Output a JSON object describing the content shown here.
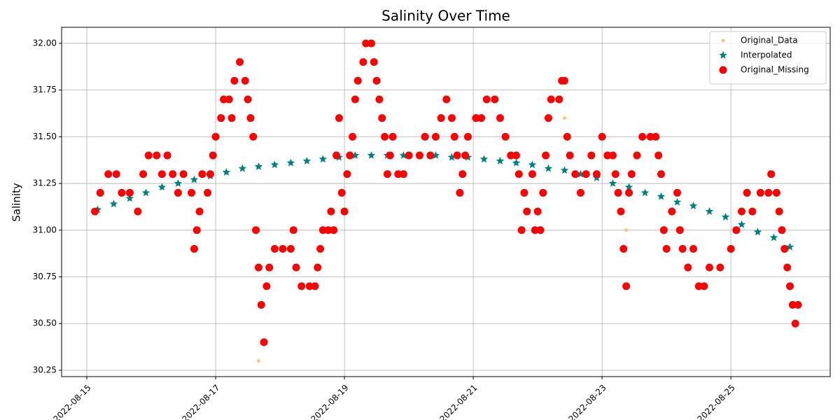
{
  "chart_data": {
    "type": "scatter",
    "title": "Salinity Over Time",
    "y_label": "Salinity",
    "xlim": [
      "2022-08-14T14:36",
      "2022-08-26T13:00"
    ],
    "xticks": [
      "2022-08-15",
      "2022-08-17",
      "2022-08-19",
      "2022-08-21",
      "2022-08-23",
      "2022-08-25"
    ],
    "ylim": [
      30.216,
      32.086
    ],
    "yticks": [
      30.25,
      {
        "value": 30.5,
        "label": "30.50"
      },
      30.75,
      {
        "value": 31,
        "label": "31.00"
      },
      31.25,
      {
        "value": 31.5,
        "label": "31.50"
      },
      31.75,
      {
        "value": 32,
        "label": "32.00"
      }
    ],
    "grid": true,
    "legend": "upper right",
    "series": [
      {
        "name": "Original_Data",
        "color": "#f8c77b",
        "marker": "o",
        "marker_size": 2.5,
        "x": [
          "2022-08-17T16:00",
          "2022-08-21T00:00",
          "2022-08-22T10:00",
          "2022-08-23T09:00"
        ],
        "values": [
          30.3,
          31.6,
          31.6,
          31.0
        ]
      },
      {
        "name": "Interpolated",
        "color": "#008080",
        "marker": "*",
        "marker_size": 6,
        "x": [
          "2022-08-15T04:00",
          "2022-08-15T10:00",
          "2022-08-15T16:00",
          "2022-08-15T22:00",
          "2022-08-16T04:00",
          "2022-08-16T10:00",
          "2022-08-16T16:00",
          "2022-08-16T22:00",
          "2022-08-17T04:00",
          "2022-08-17T10:00",
          "2022-08-17T16:00",
          "2022-08-17T22:00",
          "2022-08-18T04:00",
          "2022-08-18T10:00",
          "2022-08-18T16:00",
          "2022-08-18T22:00",
          "2022-08-19T04:00",
          "2022-08-19T10:00",
          "2022-08-19T16:00",
          "2022-08-19T22:00",
          "2022-08-20T04:00",
          "2022-08-20T10:00",
          "2022-08-20T16:00",
          "2022-08-20T22:00",
          "2022-08-21T04:00",
          "2022-08-21T10:00",
          "2022-08-21T16:00",
          "2022-08-21T22:00",
          "2022-08-22T04:00",
          "2022-08-22T10:00",
          "2022-08-22T16:00",
          "2022-08-22T22:00",
          "2022-08-23T04:00",
          "2022-08-23T10:00",
          "2022-08-23T16:00",
          "2022-08-23T22:00",
          "2022-08-24T04:00",
          "2022-08-24T10:00",
          "2022-08-24T16:00",
          "2022-08-24T22:00",
          "2022-08-25T04:00",
          "2022-08-25T10:00",
          "2022-08-25T16:00",
          "2022-08-25T22:00"
        ],
        "values": [
          31.11,
          31.14,
          31.17,
          31.2,
          31.23,
          31.25,
          31.27,
          31.29,
          31.31,
          31.33,
          31.34,
          31.35,
          31.36,
          31.37,
          31.38,
          31.39,
          31.4,
          31.4,
          31.4,
          31.4,
          31.4,
          31.4,
          31.39,
          31.39,
          31.38,
          31.37,
          31.36,
          31.35,
          31.33,
          31.32,
          31.3,
          31.28,
          31.25,
          31.23,
          31.2,
          31.18,
          31.15,
          31.13,
          31.1,
          31.07,
          31.03,
          30.99,
          30.96,
          30.91
        ]
      },
      {
        "name": "Original_Missing",
        "color": "#ff0000",
        "marker": "o",
        "marker_size": 5.5,
        "x": [
          "2022-08-15T03:00",
          "2022-08-15T05:00",
          "2022-08-15T08:00",
          "2022-08-15T11:00",
          "2022-08-15T13:00",
          "2022-08-15T16:00",
          "2022-08-15T19:00",
          "2022-08-15T21:00",
          "2022-08-15T23:00",
          "2022-08-16T02:00",
          "2022-08-16T04:00",
          "2022-08-16T06:00",
          "2022-08-16T08:00",
          "2022-08-16T10:00",
          "2022-08-16T12:00",
          "2022-08-16T15:00",
          "2022-08-16T16:00",
          "2022-08-16T17:00",
          "2022-08-16T18:00",
          "2022-08-16T19:00",
          "2022-08-16T21:00",
          "2022-08-16T22:00",
          "2022-08-16T23:00",
          "2022-08-17T00:00",
          "2022-08-17T02:00",
          "2022-08-17T03:00",
          "2022-08-17T05:00",
          "2022-08-17T06:00",
          "2022-08-17T07:00",
          "2022-08-17T09:00",
          "2022-08-17T11:00",
          "2022-08-17T12:00",
          "2022-08-17T13:00",
          "2022-08-17T14:00",
          "2022-08-17T15:00",
          "2022-08-17T16:00",
          "2022-08-17T17:00",
          "2022-08-17T18:00",
          "2022-08-17T19:00",
          "2022-08-17T20:00",
          "2022-08-17T22:00",
          "2022-08-18T01:00",
          "2022-08-18T04:00",
          "2022-08-18T05:00",
          "2022-08-18T06:00",
          "2022-08-18T08:00",
          "2022-08-18T11:00",
          "2022-08-18T13:00",
          "2022-08-18T14:00",
          "2022-08-18T15:00",
          "2022-08-18T16:00",
          "2022-08-18T18:00",
          "2022-08-18T19:00",
          "2022-08-18T20:00",
          "2022-08-18T21:00",
          "2022-08-18T22:00",
          "2022-08-18T23:00",
          "2022-08-19T00:00",
          "2022-08-19T01:00",
          "2022-08-19T02:00",
          "2022-08-19T03:00",
          "2022-08-19T04:00",
          "2022-08-19T05:00",
          "2022-08-19T07:00",
          "2022-08-19T08:00",
          "2022-08-19T10:00",
          "2022-08-19T11:00",
          "2022-08-19T12:00",
          "2022-08-19T13:00",
          "2022-08-19T14:00",
          "2022-08-19T15:00",
          "2022-08-19T16:00",
          "2022-08-19T17:00",
          "2022-08-19T18:00",
          "2022-08-19T20:00",
          "2022-08-19T22:00",
          "2022-08-20T00:00",
          "2022-08-20T04:00",
          "2022-08-20T06:00",
          "2022-08-20T08:00",
          "2022-08-20T10:00",
          "2022-08-20T12:00",
          "2022-08-20T14:00",
          "2022-08-20T16:00",
          "2022-08-20T17:00",
          "2022-08-20T18:00",
          "2022-08-20T19:00",
          "2022-08-20T20:00",
          "2022-08-20T21:00",
          "2022-08-20T22:00",
          "2022-08-21T01:00",
          "2022-08-21T03:00",
          "2022-08-21T05:00",
          "2022-08-21T08:00",
          "2022-08-21T10:00",
          "2022-08-21T12:00",
          "2022-08-21T14:00",
          "2022-08-21T16:00",
          "2022-08-21T17:00",
          "2022-08-21T18:00",
          "2022-08-21T19:00",
          "2022-08-21T20:00",
          "2022-08-21T22:00",
          "2022-08-21T23:00",
          "2022-08-22T00:00",
          "2022-08-22T01:00",
          "2022-08-22T02:00",
          "2022-08-22T03:00",
          "2022-08-22T04:00",
          "2022-08-22T05:00",
          "2022-08-22T08:00",
          "2022-08-22T09:00",
          "2022-08-22T10:00",
          "2022-08-22T11:00",
          "2022-08-22T12:00",
          "2022-08-22T14:00",
          "2022-08-22T16:00",
          "2022-08-22T18:00",
          "2022-08-22T20:00",
          "2022-08-22T22:00",
          "2022-08-23T00:00",
          "2022-08-23T02:00",
          "2022-08-23T04:00",
          "2022-08-23T05:00",
          "2022-08-23T06:00",
          "2022-08-23T07:00",
          "2022-08-23T08:00",
          "2022-08-23T09:00",
          "2022-08-23T10:00",
          "2022-08-23T11:00",
          "2022-08-23T13:00",
          "2022-08-23T15:00",
          "2022-08-23T18:00",
          "2022-08-23T20:00",
          "2022-08-23T21:00",
          "2022-08-23T22:00",
          "2022-08-23T23:00",
          "2022-08-24T00:00",
          "2022-08-24T02:00",
          "2022-08-24T04:00",
          "2022-08-24T05:00",
          "2022-08-24T06:00",
          "2022-08-24T08:00",
          "2022-08-24T10:00",
          "2022-08-24T12:00",
          "2022-08-24T14:00",
          "2022-08-24T16:00",
          "2022-08-24T20:00",
          "2022-08-25T00:00",
          "2022-08-25T02:00",
          "2022-08-25T04:00",
          "2022-08-25T06:00",
          "2022-08-25T08:00",
          "2022-08-25T11:00",
          "2022-08-25T14:00",
          "2022-08-25T15:00",
          "2022-08-25T17:00",
          "2022-08-25T18:00",
          "2022-08-25T19:00",
          "2022-08-25T20:00",
          "2022-08-25T21:00",
          "2022-08-25T22:00",
          "2022-08-25T23:00",
          "2022-08-26T00:00",
          "2022-08-26T01:00"
        ],
        "values": [
          31.1,
          31.2,
          31.3,
          31.3,
          31.2,
          31.2,
          31.1,
          31.3,
          31.4,
          31.4,
          31.3,
          31.4,
          31.3,
          31.2,
          31.3,
          31.2,
          30.9,
          31.0,
          31.1,
          31.3,
          31.2,
          31.3,
          31.4,
          31.5,
          31.6,
          31.7,
          31.7,
          31.6,
          31.8,
          31.9,
          31.8,
          31.7,
          31.6,
          31.5,
          31.0,
          30.8,
          30.6,
          30.4,
          30.7,
          30.8,
          30.9,
          30.9,
          30.9,
          31.0,
          30.8,
          30.7,
          30.7,
          30.7,
          30.8,
          30.9,
          31.0,
          31.0,
          31.1,
          31.0,
          31.4,
          31.6,
          31.2,
          31.1,
          31.3,
          31.4,
          31.5,
          31.7,
          31.8,
          31.9,
          32.0,
          32.0,
          31.9,
          31.8,
          31.7,
          31.6,
          31.5,
          31.3,
          31.4,
          31.5,
          31.3,
          31.3,
          31.4,
          31.4,
          31.5,
          31.4,
          31.5,
          31.6,
          31.7,
          31.6,
          31.5,
          31.4,
          31.2,
          31.3,
          31.4,
          31.5,
          31.6,
          31.6,
          31.7,
          31.7,
          31.6,
          31.5,
          31.4,
          31.4,
          31.3,
          31.0,
          31.2,
          31.1,
          31.3,
          31.0,
          31.1,
          31.0,
          31.2,
          31.4,
          31.6,
          31.7,
          31.7,
          31.8,
          31.8,
          31.5,
          31.4,
          31.3,
          31.2,
          31.3,
          31.4,
          31.3,
          31.5,
          31.4,
          31.4,
          31.3,
          31.2,
          31.1,
          30.9,
          30.7,
          31.2,
          31.3,
          31.4,
          31.5,
          31.5,
          31.5,
          31.4,
          31.3,
          31.0,
          30.9,
          31.1,
          31.2,
          31.0,
          30.9,
          30.8,
          30.9,
          30.7,
          30.7,
          30.8,
          30.8,
          30.9,
          31.0,
          31.1,
          31.2,
          31.1,
          31.2,
          31.2,
          31.3,
          31.2,
          31.1,
          31.0,
          30.9,
          30.8,
          30.7,
          30.6,
          30.5,
          30.6
        ]
      }
    ]
  }
}
